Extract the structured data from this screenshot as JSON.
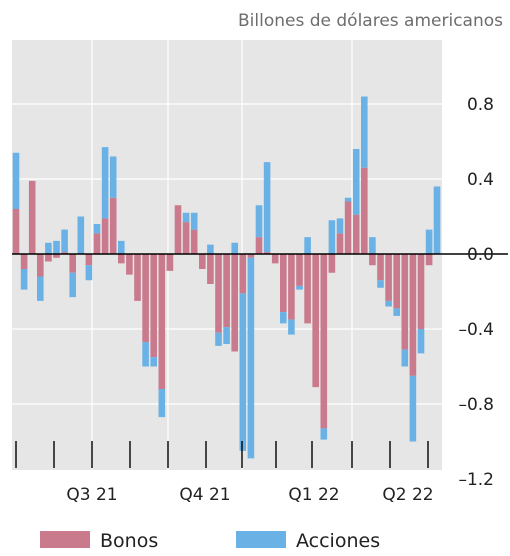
{
  "chart_data": {
    "type": "bar",
    "stacked": true,
    "unit_label": "Billones de dólares americanos",
    "ylim": [
      -1.3,
      1.05
    ],
    "yticks": [
      0.8,
      0.4,
      0.0,
      -0.4,
      -0.8,
      -1.2
    ],
    "ytick_labels": [
      "0.8",
      "0.4",
      "0.0",
      "–0.4",
      "–0.8",
      "–1.2"
    ],
    "grid": true,
    "legend_position": "bottom",
    "x_period_labels": [
      "Q3 21",
      "Q4 21",
      "Q1 22",
      "Q2 22"
    ],
    "series": [
      {
        "name": "Bonos",
        "color": "#c97a8c",
        "values": [
          0.24,
          -0.08,
          0.39,
          -0.12,
          -0.04,
          -0.02,
          0.01,
          -0.1,
          0.0,
          -0.06,
          0.11,
          0.19,
          0.3,
          -0.05,
          -0.11,
          -0.25,
          -0.47,
          -0.55,
          -0.72,
          -0.09,
          0.26,
          0.17,
          0.13,
          -0.08,
          -0.16,
          -0.42,
          -0.39,
          -0.52,
          -0.21,
          -0.02,
          0.09,
          0.01,
          -0.05,
          -0.31,
          -0.35,
          -0.17,
          -0.37,
          -0.71,
          -0.93,
          -0.1,
          0.11,
          0.28,
          0.21,
          0.46,
          -0.06,
          -0.14,
          -0.25,
          -0.29,
          -0.51,
          -0.65,
          -0.4,
          -0.06
        ]
      },
      {
        "name": "Acciones",
        "color": "#6ab2e6",
        "values": [
          0.3,
          -0.11,
          0.0,
          -0.13,
          0.06,
          0.07,
          0.12,
          -0.13,
          0.2,
          -0.08,
          0.05,
          0.38,
          0.22,
          0.07,
          0.0,
          0.0,
          -0.13,
          -0.05,
          -0.15,
          0.0,
          0.0,
          0.05,
          0.09,
          0.0,
          0.05,
          -0.07,
          -0.09,
          0.06,
          -0.84,
          -1.07,
          0.17,
          0.48,
          0.0,
          -0.06,
          -0.08,
          -0.02,
          0.09,
          0.0,
          -0.06,
          0.18,
          0.08,
          0.02,
          0.35,
          0.38,
          0.09,
          -0.04,
          -0.03,
          -0.04,
          -0.09,
          -0.35,
          -0.13,
          0.13
        ]
      }
    ],
    "extra_bars": [
      {
        "position_after_index": 51,
        "bonos": 0.0,
        "acciones": 0.36
      }
    ]
  }
}
